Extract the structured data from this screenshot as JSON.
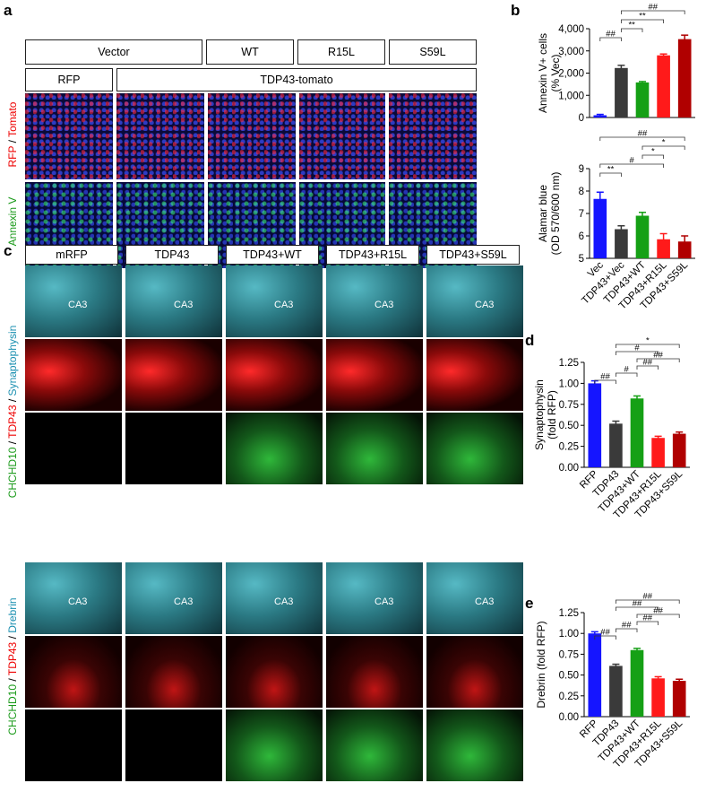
{
  "panels": {
    "a": "a",
    "b": "b",
    "c": "c",
    "d": "d",
    "e": "e"
  },
  "panel_a": {
    "top_headers": [
      "Vector",
      "WT",
      "R15L",
      "S59L"
    ],
    "second_headers": [
      "RFP",
      "TDP43-tomato"
    ],
    "row_labels": {
      "row1_p1": "RFP",
      "row1_sep": " / ",
      "row1_p2": "Tomato",
      "row2": "Annexin V"
    }
  },
  "panel_c": {
    "column_headers": [
      "mRFP",
      "TDP43",
      "TDP43+WT",
      "TDP43+R15L",
      "TDP43+S59L"
    ],
    "ca3_label": "CA3",
    "group1_labels": {
      "syn_p1": "CHCHD10",
      "syn_sep1": " / ",
      "syn_p2": "TDP43",
      "syn_sep2": " / ",
      "syn_p3": "Synaptophysin"
    },
    "group2_labels": {
      "dre_p1": "CHCHD10",
      "dre_sep1": " / ",
      "dre_p2": "TDP43",
      "dre_sep2": " / ",
      "dre_p3": "Drebrin"
    }
  },
  "colors": {
    "blue": "#1515ff",
    "dark": "#3a3a3a",
    "green": "#15a015",
    "red": "#ff1a1a",
    "darkred": "#b00000"
  },
  "chart_data": [
    {
      "id": "b_top",
      "type": "bar",
      "categories": [
        "Vec",
        "TDP43+Vec",
        "TDP43+WT",
        "TDP43+R15L",
        "TDP43+S59L"
      ],
      "values": [
        100,
        2230,
        1580,
        2800,
        3530
      ],
      "errors": [
        40,
        120,
        40,
        60,
        180
      ],
      "ylabel_lines": [
        "Annexin V+ cells",
        "(% Vec)"
      ],
      "yticks": [
        "0",
        "1,000",
        "2,000",
        "3,000",
        "4,000"
      ],
      "ylim": [
        0,
        4000
      ],
      "annotations": [
        {
          "from": 0,
          "to": 1,
          "text": "##"
        },
        {
          "from": 1,
          "to": 2,
          "text": "**"
        },
        {
          "from": 1,
          "to": 3,
          "text": "**"
        },
        {
          "from": 1,
          "to": 4,
          "text": "##"
        }
      ]
    },
    {
      "id": "b_bottom",
      "type": "bar",
      "categories": [
        "Vec",
        "TDP43+Vec",
        "TDP43+WT",
        "TDP43+R15L",
        "TDP43+S59L"
      ],
      "values": [
        7.65,
        6.3,
        6.9,
        5.85,
        5.75
      ],
      "errors": [
        0.3,
        0.15,
        0.15,
        0.25,
        0.25
      ],
      "ylabel_lines": [
        "Alamar blue",
        "(OD 570/600 nm)"
      ],
      "yticks": [
        "5",
        "6",
        "7",
        "8",
        "9"
      ],
      "ylim": [
        5,
        9
      ],
      "annotations": [
        {
          "from": 0,
          "to": 1,
          "text": "**"
        },
        {
          "from": 0,
          "to": 3,
          "text": "#"
        },
        {
          "from": 2,
          "to": 3,
          "text": "*"
        },
        {
          "from": 2,
          "to": 4,
          "text": "*"
        },
        {
          "from": 0,
          "to": 4,
          "text": "##"
        }
      ]
    },
    {
      "id": "d",
      "type": "bar",
      "categories": [
        "RFP",
        "TDP43",
        "TDP43+WT",
        "TDP43+R15L",
        "TDP43+S59L"
      ],
      "values": [
        1.0,
        0.52,
        0.82,
        0.35,
        0.4
      ],
      "errors": [
        0.03,
        0.03,
        0.03,
        0.02,
        0.02
      ],
      "ylabel_lines": [
        "Synaptophysin",
        "(fold RFP)"
      ],
      "yticks": [
        "0.00",
        "0.25",
        "0.50",
        "0.75",
        "1.00",
        "1.25"
      ],
      "ylim": [
        0,
        1.25
      ],
      "annotations": [
        {
          "from": 0,
          "to": 1,
          "text": "##"
        },
        {
          "from": 1,
          "to": 2,
          "text": "#"
        },
        {
          "from": 2,
          "to": 3,
          "text": "##"
        },
        {
          "from": 2,
          "to": 4,
          "text": "##"
        },
        {
          "from": 1,
          "to": 3,
          "text": "#"
        },
        {
          "from": 1,
          "to": 4,
          "text": "*"
        }
      ]
    },
    {
      "id": "e",
      "type": "bar",
      "categories": [
        "RFP",
        "TDP43",
        "TDP43+WT",
        "TDP43+R15L",
        "TDP43+S59L"
      ],
      "values": [
        1.0,
        0.61,
        0.8,
        0.46,
        0.43
      ],
      "errors": [
        0.02,
        0.02,
        0.02,
        0.02,
        0.02
      ],
      "ylabel_lines": [
        "Drebrin (fold RFP)"
      ],
      "yticks": [
        "0.00",
        "0.25",
        "0.50",
        "0.75",
        "1.00",
        "1.25"
      ],
      "ylim": [
        0,
        1.25
      ],
      "annotations": [
        {
          "from": 0,
          "to": 1,
          "text": "##"
        },
        {
          "from": 1,
          "to": 2,
          "text": "##"
        },
        {
          "from": 2,
          "to": 3,
          "text": "##"
        },
        {
          "from": 2,
          "to": 4,
          "text": "##"
        },
        {
          "from": 1,
          "to": 3,
          "text": "##"
        },
        {
          "from": 1,
          "to": 4,
          "text": "##"
        }
      ]
    }
  ]
}
